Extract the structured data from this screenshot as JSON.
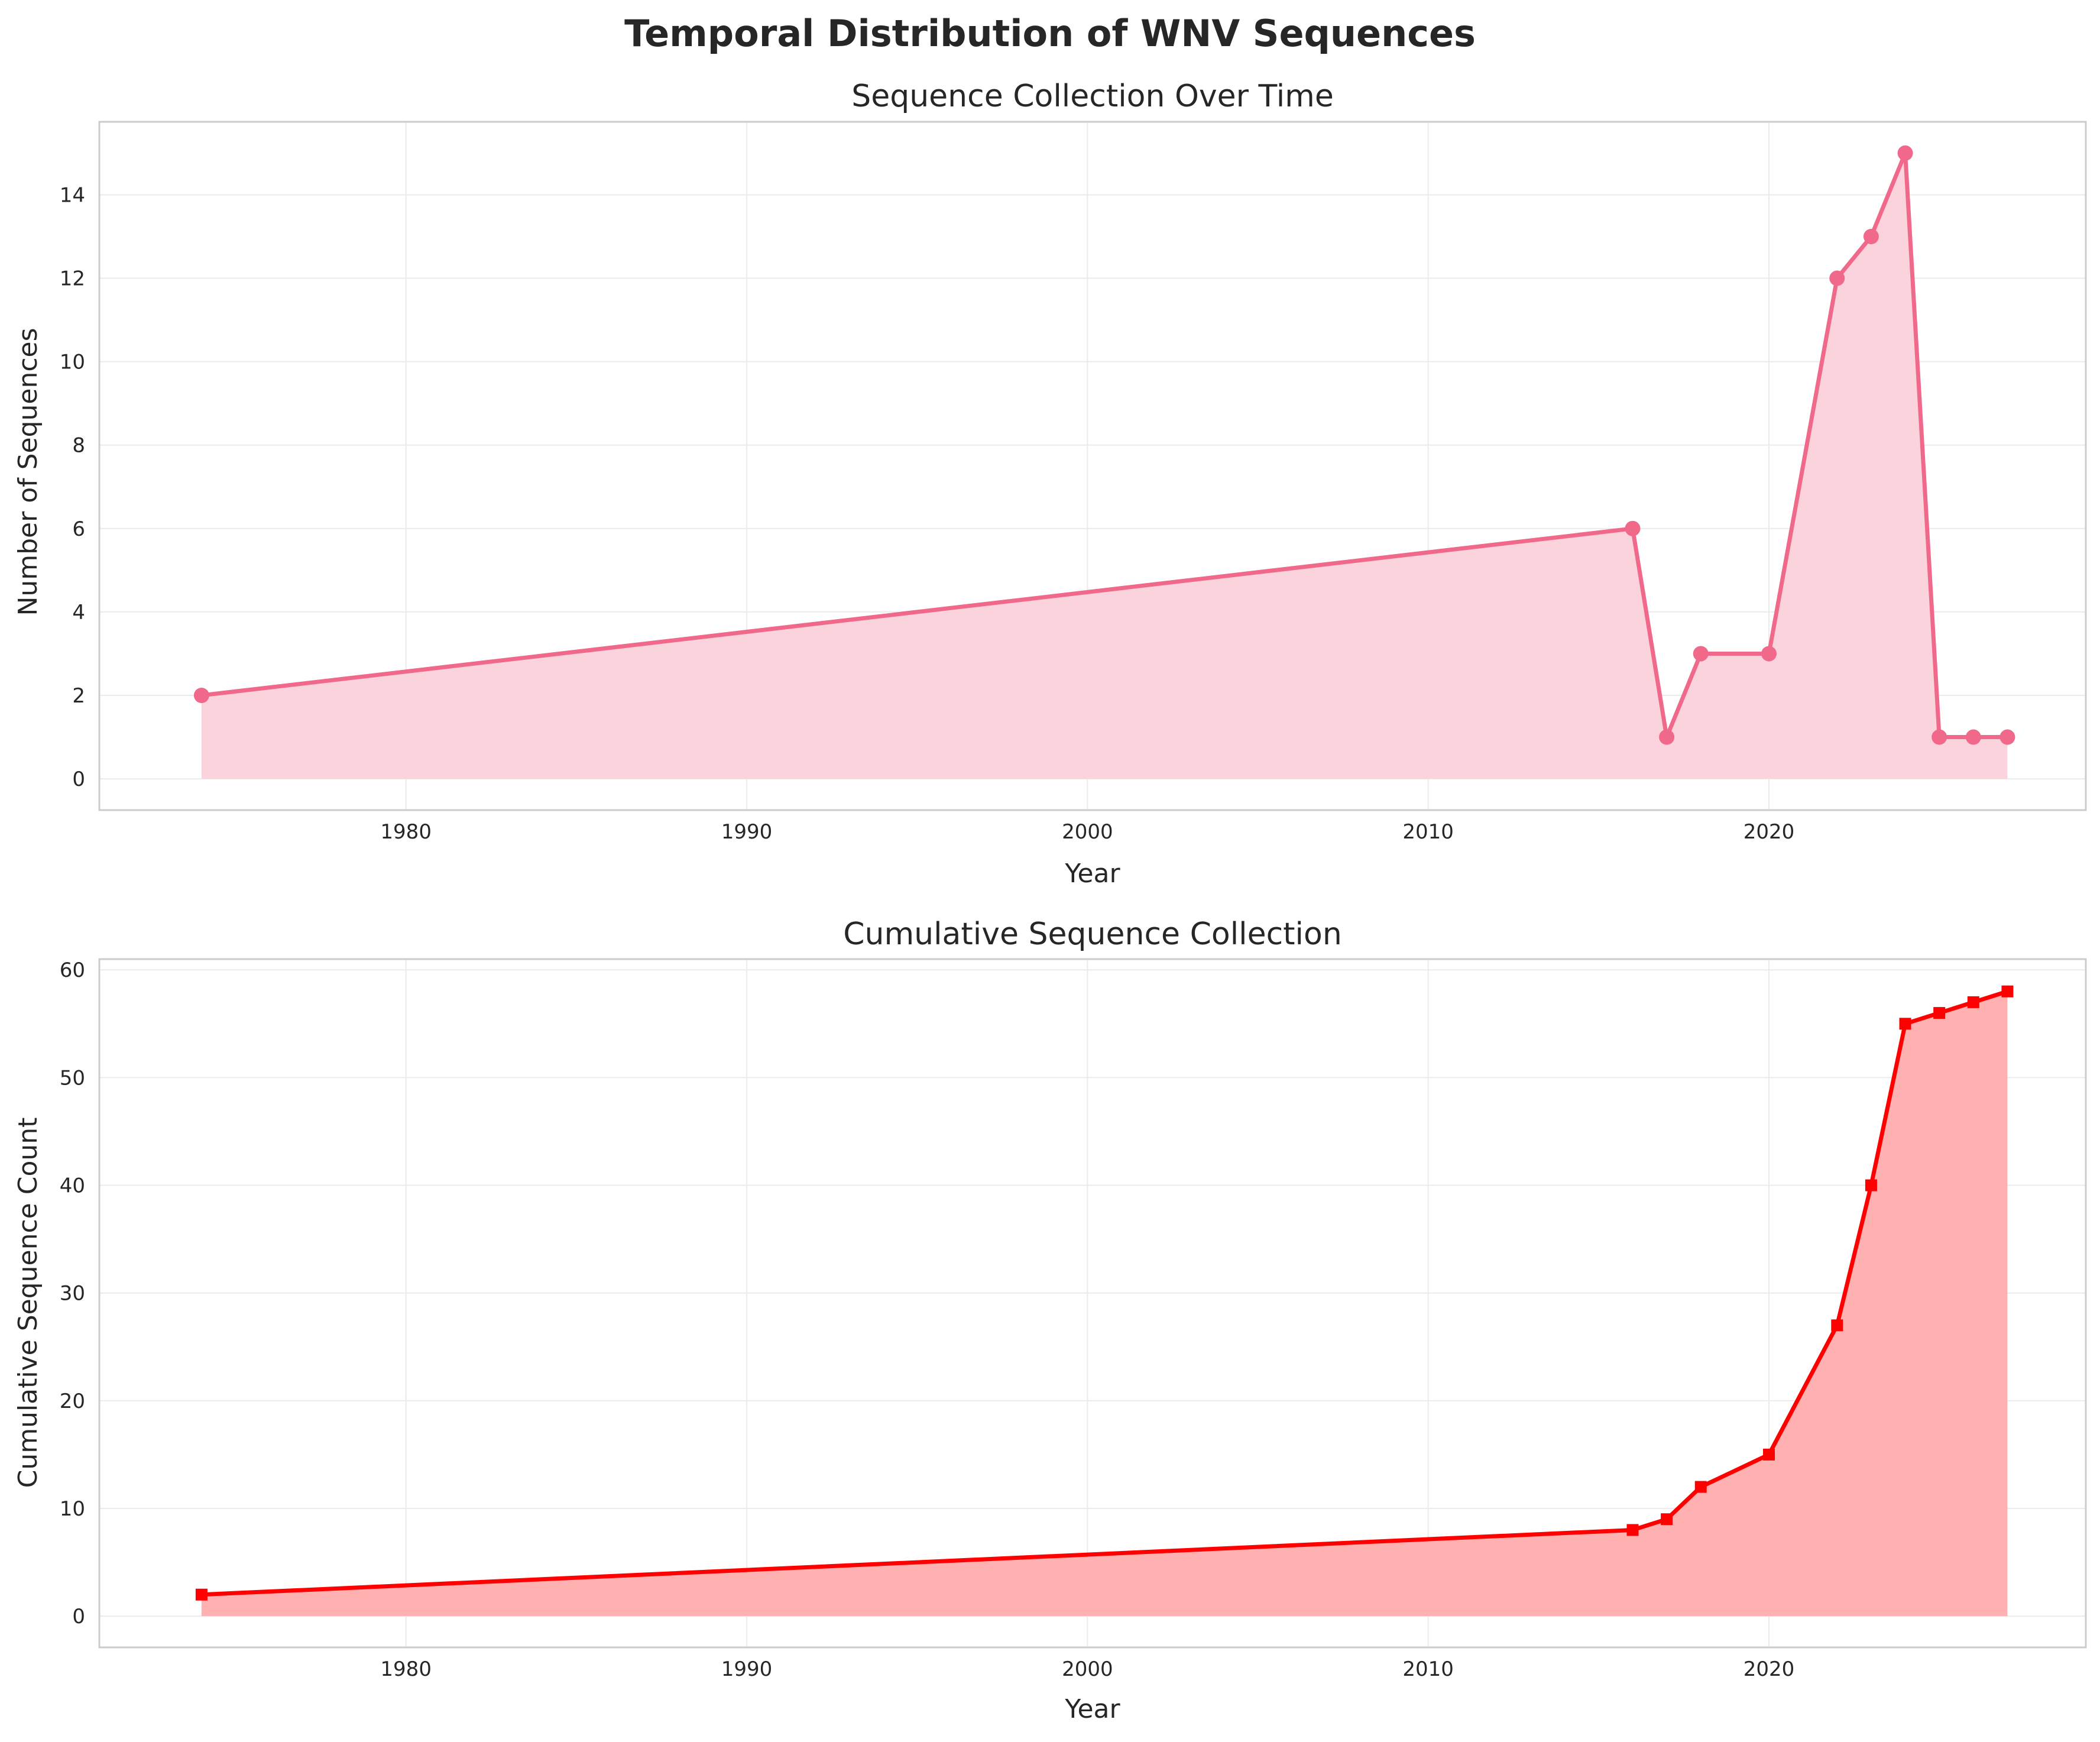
{
  "figure": {
    "suptitle": "Temporal Distribution of WNV Sequences"
  },
  "chart_data": [
    {
      "type": "area",
      "title": "Sequence Collection Over Time",
      "xlabel": "Year",
      "ylabel": "Number of Sequences",
      "x": [
        1974,
        2016,
        2017,
        2018,
        2020,
        2022,
        2023,
        2024,
        2025,
        2026,
        2027
      ],
      "series": [
        {
          "values": [
            2,
            6,
            1,
            3,
            3,
            12,
            13,
            15,
            1,
            1,
            1
          ],
          "color": "#f0688a",
          "fill": "#fbd3dc",
          "marker": "circle"
        }
      ],
      "xlim": [
        1971,
        2029.3
      ],
      "ylim": [
        -0.75,
        15.75
      ],
      "xticks": [
        1980,
        1990,
        2000,
        2010,
        2020
      ],
      "yticks": [
        0,
        2,
        4,
        6,
        8,
        10,
        12,
        14
      ],
      "grid": true
    },
    {
      "type": "area",
      "title": "Cumulative Sequence Collection",
      "xlabel": "Year",
      "ylabel": "Cumulative Sequence Count",
      "x": [
        1974,
        2016,
        2017,
        2018,
        2020,
        2022,
        2023,
        2024,
        2025,
        2026,
        2027
      ],
      "series": [
        {
          "values": [
            2,
            8,
            9,
            12,
            15,
            27,
            40,
            55,
            56,
            57,
            58
          ],
          "color": "#ff0000",
          "fill": "#ffb0b0",
          "marker": "square"
        }
      ],
      "xlim": [
        1971,
        2029.3
      ],
      "ylim": [
        -2.9,
        61
      ],
      "xticks": [
        1980,
        1990,
        2000,
        2010,
        2020
      ],
      "yticks": [
        0,
        10,
        20,
        30,
        40,
        50,
        60
      ],
      "grid": true
    }
  ]
}
